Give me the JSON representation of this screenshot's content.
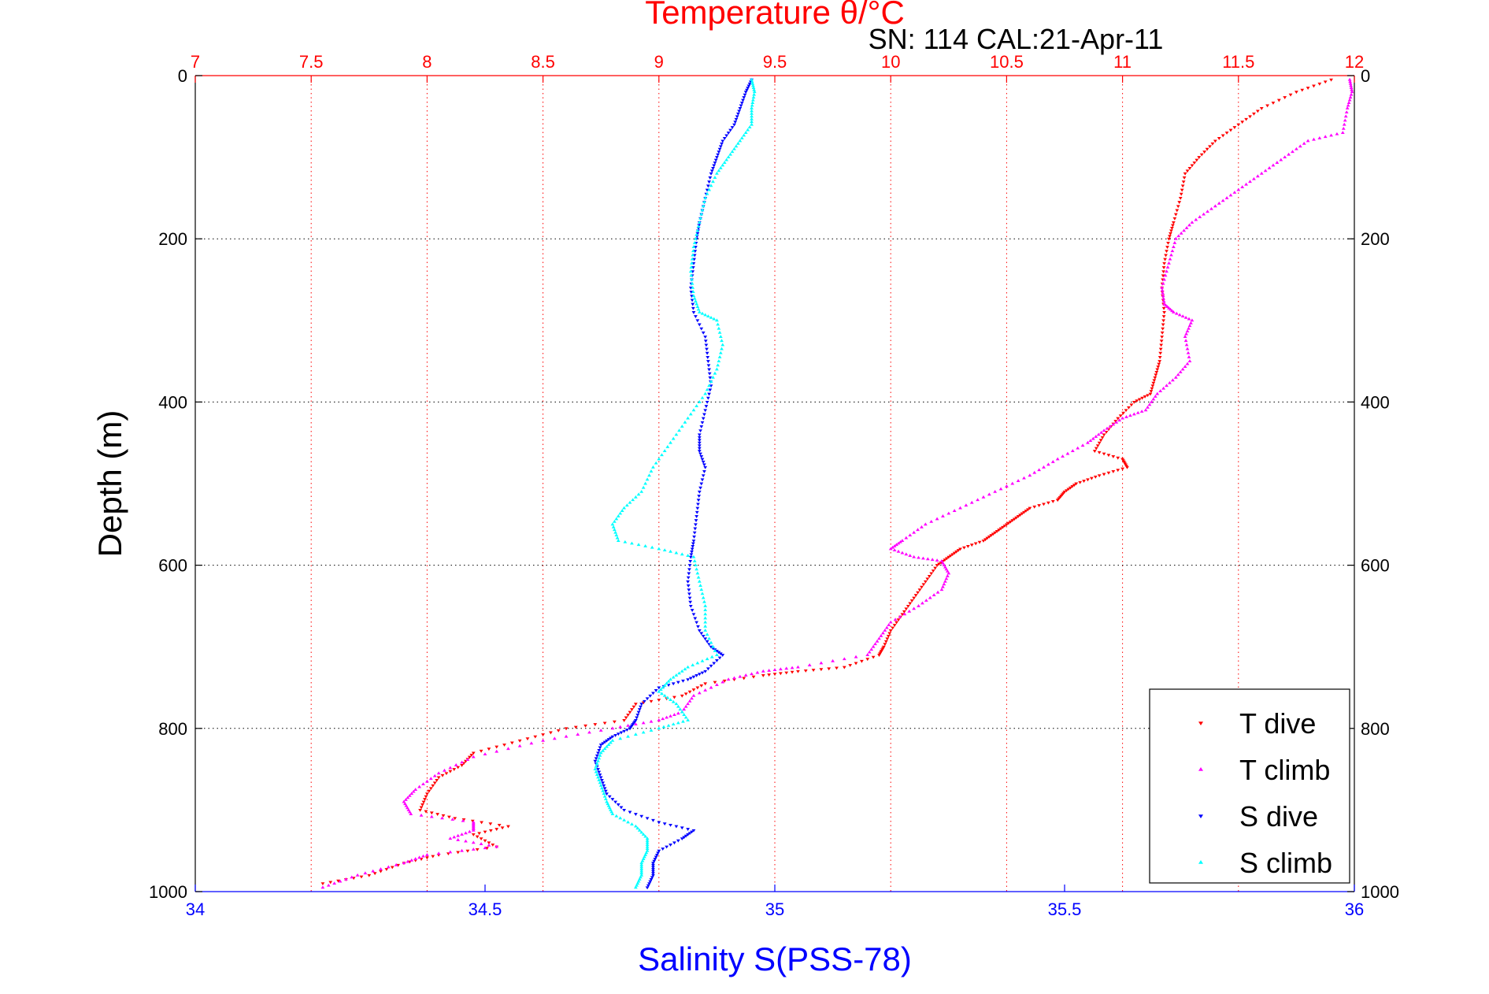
{
  "chart_data": {
    "type": "scatter",
    "title": "Temperature θ/°C",
    "subtitle": "SN: 114  CAL:21-Apr-11",
    "ylabel": "Depth (m)",
    "xlabel": "Salinity S(PSS-78)",
    "ylim": [
      0,
      1000
    ],
    "y_reversed": true,
    "x_bottom_lim": [
      34,
      36
    ],
    "x_top_lim": [
      7,
      12
    ],
    "y_ticks": [
      "0",
      "200",
      "400",
      "600",
      "800",
      "1000"
    ],
    "x_bottom_ticks": [
      "34",
      "34.5",
      "35",
      "35.5",
      "36"
    ],
    "x_top_ticks": [
      "7",
      "7.5",
      "8",
      "8.5",
      "9",
      "9.5",
      "10",
      "10.5",
      "11",
      "11.5",
      "12"
    ],
    "grid": true,
    "legend_position": "bottom-right",
    "colors": {
      "temperature_axis": "#ff0000",
      "salinity_axis": "#0000ff",
      "t_dive": "#ff0000",
      "t_climb": "#ff00ff",
      "s_dive": "#0000ff",
      "s_climb": "#00ffff"
    },
    "series": [
      {
        "name": "T dive",
        "axis": "temperature",
        "marker": "triangle-down",
        "points": [
          [
            11.9,
            5
          ],
          [
            11.75,
            20
          ],
          [
            11.6,
            40
          ],
          [
            11.5,
            60
          ],
          [
            11.4,
            80
          ],
          [
            11.33,
            100
          ],
          [
            11.27,
            120
          ],
          [
            11.25,
            150
          ],
          [
            11.22,
            180
          ],
          [
            11.2,
            200
          ],
          [
            11.18,
            230
          ],
          [
            11.17,
            260
          ],
          [
            11.18,
            290
          ],
          [
            11.17,
            320
          ],
          [
            11.16,
            350
          ],
          [
            11.14,
            370
          ],
          [
            11.12,
            390
          ],
          [
            11.05,
            400
          ],
          [
            10.98,
            420
          ],
          [
            10.92,
            440
          ],
          [
            10.88,
            460
          ],
          [
            11.0,
            470
          ],
          [
            11.02,
            480
          ],
          [
            10.9,
            490
          ],
          [
            10.8,
            500
          ],
          [
            10.75,
            510
          ],
          [
            10.72,
            520
          ],
          [
            10.6,
            530
          ],
          [
            10.55,
            540
          ],
          [
            10.5,
            550
          ],
          [
            10.45,
            560
          ],
          [
            10.4,
            570
          ],
          [
            10.3,
            580
          ],
          [
            10.25,
            590
          ],
          [
            10.2,
            600
          ],
          [
            10.15,
            620
          ],
          [
            10.1,
            640
          ],
          [
            10.05,
            660
          ],
          [
            10.0,
            680
          ],
          [
            9.97,
            700
          ],
          [
            9.95,
            710
          ],
          [
            9.8,
            725
          ],
          [
            9.6,
            730
          ],
          [
            9.45,
            735
          ],
          [
            9.2,
            745
          ],
          [
            9.1,
            760
          ],
          [
            8.9,
            770
          ],
          [
            8.85,
            790
          ],
          [
            8.6,
            800
          ],
          [
            8.4,
            815
          ],
          [
            8.2,
            830
          ],
          [
            8.15,
            845
          ],
          [
            8.05,
            860
          ],
          [
            8.0,
            880
          ],
          [
            7.97,
            900
          ],
          [
            8.12,
            910
          ],
          [
            8.35,
            920
          ],
          [
            8.2,
            930
          ],
          [
            8.3,
            945
          ],
          [
            8.05,
            955
          ],
          [
            7.9,
            965
          ],
          [
            7.75,
            980
          ],
          [
            7.55,
            990
          ]
        ]
      },
      {
        "name": "T climb",
        "axis": "temperature",
        "marker": "triangle-up",
        "points": [
          [
            11.98,
            5
          ],
          [
            11.99,
            20
          ],
          [
            11.97,
            40
          ],
          [
            11.95,
            70
          ],
          [
            11.8,
            80
          ],
          [
            11.7,
            100
          ],
          [
            11.6,
            120
          ],
          [
            11.5,
            140
          ],
          [
            11.4,
            160
          ],
          [
            11.3,
            180
          ],
          [
            11.23,
            200
          ],
          [
            11.2,
            230
          ],
          [
            11.17,
            260
          ],
          [
            11.18,
            280
          ],
          [
            11.22,
            290
          ],
          [
            11.3,
            300
          ],
          [
            11.27,
            320
          ],
          [
            11.29,
            350
          ],
          [
            11.23,
            370
          ],
          [
            11.15,
            390
          ],
          [
            11.1,
            410
          ],
          [
            11.0,
            420
          ],
          [
            10.92,
            435
          ],
          [
            10.85,
            450
          ],
          [
            10.72,
            470
          ],
          [
            10.6,
            490
          ],
          [
            10.45,
            510
          ],
          [
            10.3,
            530
          ],
          [
            10.15,
            550
          ],
          [
            10.05,
            570
          ],
          [
            10.0,
            580
          ],
          [
            10.1,
            590
          ],
          [
            10.22,
            595
          ],
          [
            10.25,
            610
          ],
          [
            10.22,
            630
          ],
          [
            10.12,
            650
          ],
          [
            10.0,
            670
          ],
          [
            9.95,
            690
          ],
          [
            9.9,
            710
          ],
          [
            9.6,
            725
          ],
          [
            9.45,
            730
          ],
          [
            9.3,
            740
          ],
          [
            9.15,
            760
          ],
          [
            9.1,
            780
          ],
          [
            9.0,
            790
          ],
          [
            8.8,
            800
          ],
          [
            8.5,
            815
          ],
          [
            8.2,
            835
          ],
          [
            8.05,
            855
          ],
          [
            7.95,
            875
          ],
          [
            7.9,
            890
          ],
          [
            7.93,
            905
          ],
          [
            8.2,
            915
          ],
          [
            8.2,
            925
          ],
          [
            8.1,
            935
          ],
          [
            8.3,
            945
          ],
          [
            8.0,
            955
          ],
          [
            7.9,
            965
          ],
          [
            7.7,
            980
          ],
          [
            7.55,
            995
          ]
        ]
      },
      {
        "name": "S dive",
        "axis": "salinity",
        "marker": "triangle-down",
        "points": [
          [
            34.96,
            5
          ],
          [
            34.95,
            20
          ],
          [
            34.94,
            40
          ],
          [
            34.93,
            60
          ],
          [
            34.91,
            80
          ],
          [
            34.9,
            100
          ],
          [
            34.89,
            120
          ],
          [
            34.88,
            150
          ],
          [
            34.87,
            180
          ],
          [
            34.865,
            200
          ],
          [
            34.86,
            230
          ],
          [
            34.855,
            260
          ],
          [
            34.86,
            290
          ],
          [
            34.88,
            320
          ],
          [
            34.885,
            350
          ],
          [
            34.89,
            380
          ],
          [
            34.88,
            410
          ],
          [
            34.87,
            440
          ],
          [
            34.87,
            460
          ],
          [
            34.88,
            480
          ],
          [
            34.87,
            510
          ],
          [
            34.865,
            540
          ],
          [
            34.86,
            570
          ],
          [
            34.855,
            590
          ],
          [
            34.85,
            620
          ],
          [
            34.855,
            650
          ],
          [
            34.87,
            680
          ],
          [
            34.89,
            700
          ],
          [
            34.91,
            710
          ],
          [
            34.88,
            730
          ],
          [
            34.85,
            740
          ],
          [
            34.8,
            750
          ],
          [
            34.77,
            770
          ],
          [
            34.76,
            790
          ],
          [
            34.75,
            800
          ],
          [
            34.72,
            810
          ],
          [
            34.7,
            820
          ],
          [
            34.69,
            840
          ],
          [
            34.7,
            860
          ],
          [
            34.71,
            880
          ],
          [
            34.74,
            900
          ],
          [
            34.8,
            915
          ],
          [
            34.86,
            925
          ],
          [
            34.84,
            935
          ],
          [
            34.8,
            950
          ],
          [
            34.79,
            965
          ],
          [
            34.79,
            980
          ],
          [
            34.78,
            995
          ]
        ]
      },
      {
        "name": "S climb",
        "axis": "salinity",
        "marker": "triangle-up",
        "points": [
          [
            34.96,
            5
          ],
          [
            34.965,
            20
          ],
          [
            34.96,
            40
          ],
          [
            34.96,
            60
          ],
          [
            34.94,
            80
          ],
          [
            34.92,
            100
          ],
          [
            34.9,
            120
          ],
          [
            34.88,
            150
          ],
          [
            34.87,
            180
          ],
          [
            34.86,
            210
          ],
          [
            34.855,
            240
          ],
          [
            34.86,
            270
          ],
          [
            34.87,
            290
          ],
          [
            34.9,
            300
          ],
          [
            34.91,
            330
          ],
          [
            34.9,
            360
          ],
          [
            34.88,
            390
          ],
          [
            34.85,
            420
          ],
          [
            34.82,
            450
          ],
          [
            34.79,
            480
          ],
          [
            34.77,
            510
          ],
          [
            34.74,
            530
          ],
          [
            34.72,
            550
          ],
          [
            34.73,
            570
          ],
          [
            34.8,
            580
          ],
          [
            34.86,
            590
          ],
          [
            34.87,
            620
          ],
          [
            34.88,
            650
          ],
          [
            34.88,
            680
          ],
          [
            34.9,
            710
          ],
          [
            34.85,
            725
          ],
          [
            34.82,
            740
          ],
          [
            34.8,
            755
          ],
          [
            34.83,
            770
          ],
          [
            34.85,
            790
          ],
          [
            34.8,
            800
          ],
          [
            34.72,
            815
          ],
          [
            34.7,
            830
          ],
          [
            34.69,
            850
          ],
          [
            34.7,
            870
          ],
          [
            34.71,
            890
          ],
          [
            34.72,
            905
          ],
          [
            34.76,
            920
          ],
          [
            34.78,
            935
          ],
          [
            34.78,
            950
          ],
          [
            34.77,
            965
          ],
          [
            34.77,
            980
          ],
          [
            34.76,
            995
          ]
        ]
      }
    ]
  }
}
